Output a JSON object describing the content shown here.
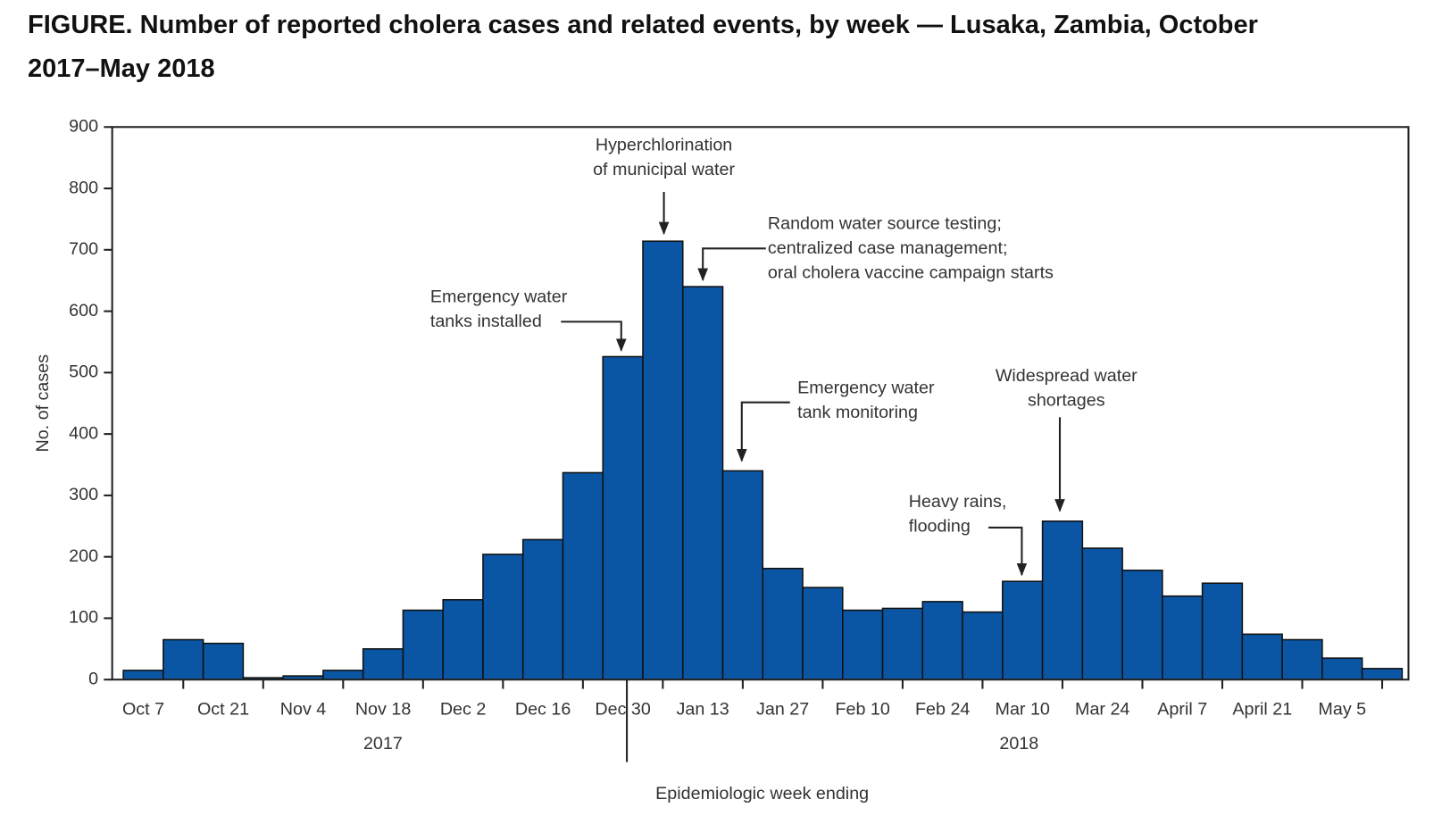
{
  "chart_data": {
    "type": "bar",
    "title": "FIGURE. Number of reported cholera cases and related events, by week — Lusaka, Zambia, October 2017–May 2018",
    "x_label": "Epidemiologic week ending",
    "y_label": "No. of cases",
    "categories": [
      "Oct 7",
      null,
      "Oct 21",
      null,
      "Nov 4",
      null,
      "Nov 18",
      null,
      "Dec 2",
      null,
      "Dec 16",
      null,
      "Dec 30",
      null,
      "Jan 13",
      null,
      "Jan 27",
      null,
      "Feb 10",
      null,
      "Feb 24",
      null,
      "Mar 10",
      null,
      "Mar 24",
      null,
      "April 7",
      null,
      "April 21",
      null,
      "May 5",
      null
    ],
    "x_group_labels": [
      "2017",
      "2018"
    ],
    "values": [
      15,
      65,
      59,
      3,
      6,
      15,
      50,
      113,
      130,
      204,
      228,
      337,
      526,
      714,
      640,
      340,
      181,
      150,
      113,
      116,
      127,
      110,
      160,
      258,
      214,
      178,
      136,
      157,
      74,
      65,
      35,
      18
    ],
    "color": "#0b56a4",
    "ylim": [
      0,
      900
    ],
    "yticks": [
      0,
      100,
      200,
      300,
      400,
      500,
      600,
      700,
      800,
      900
    ],
    "annotations": [
      {
        "lines": [
          "Hyperchlorination",
          "of municipal water"
        ]
      },
      {
        "lines": [
          "Random water source testing;",
          "centralized case management;",
          "oral cholera vaccine campaign starts"
        ]
      },
      {
        "lines": [
          "Emergency water",
          "tanks installed"
        ]
      },
      {
        "lines": [
          "Emergency water",
          "tank monitoring"
        ]
      },
      {
        "lines": [
          "Widespread water",
          "shortages"
        ]
      },
      {
        "lines": [
          "Heavy rains,",
          "flooding"
        ]
      }
    ]
  }
}
